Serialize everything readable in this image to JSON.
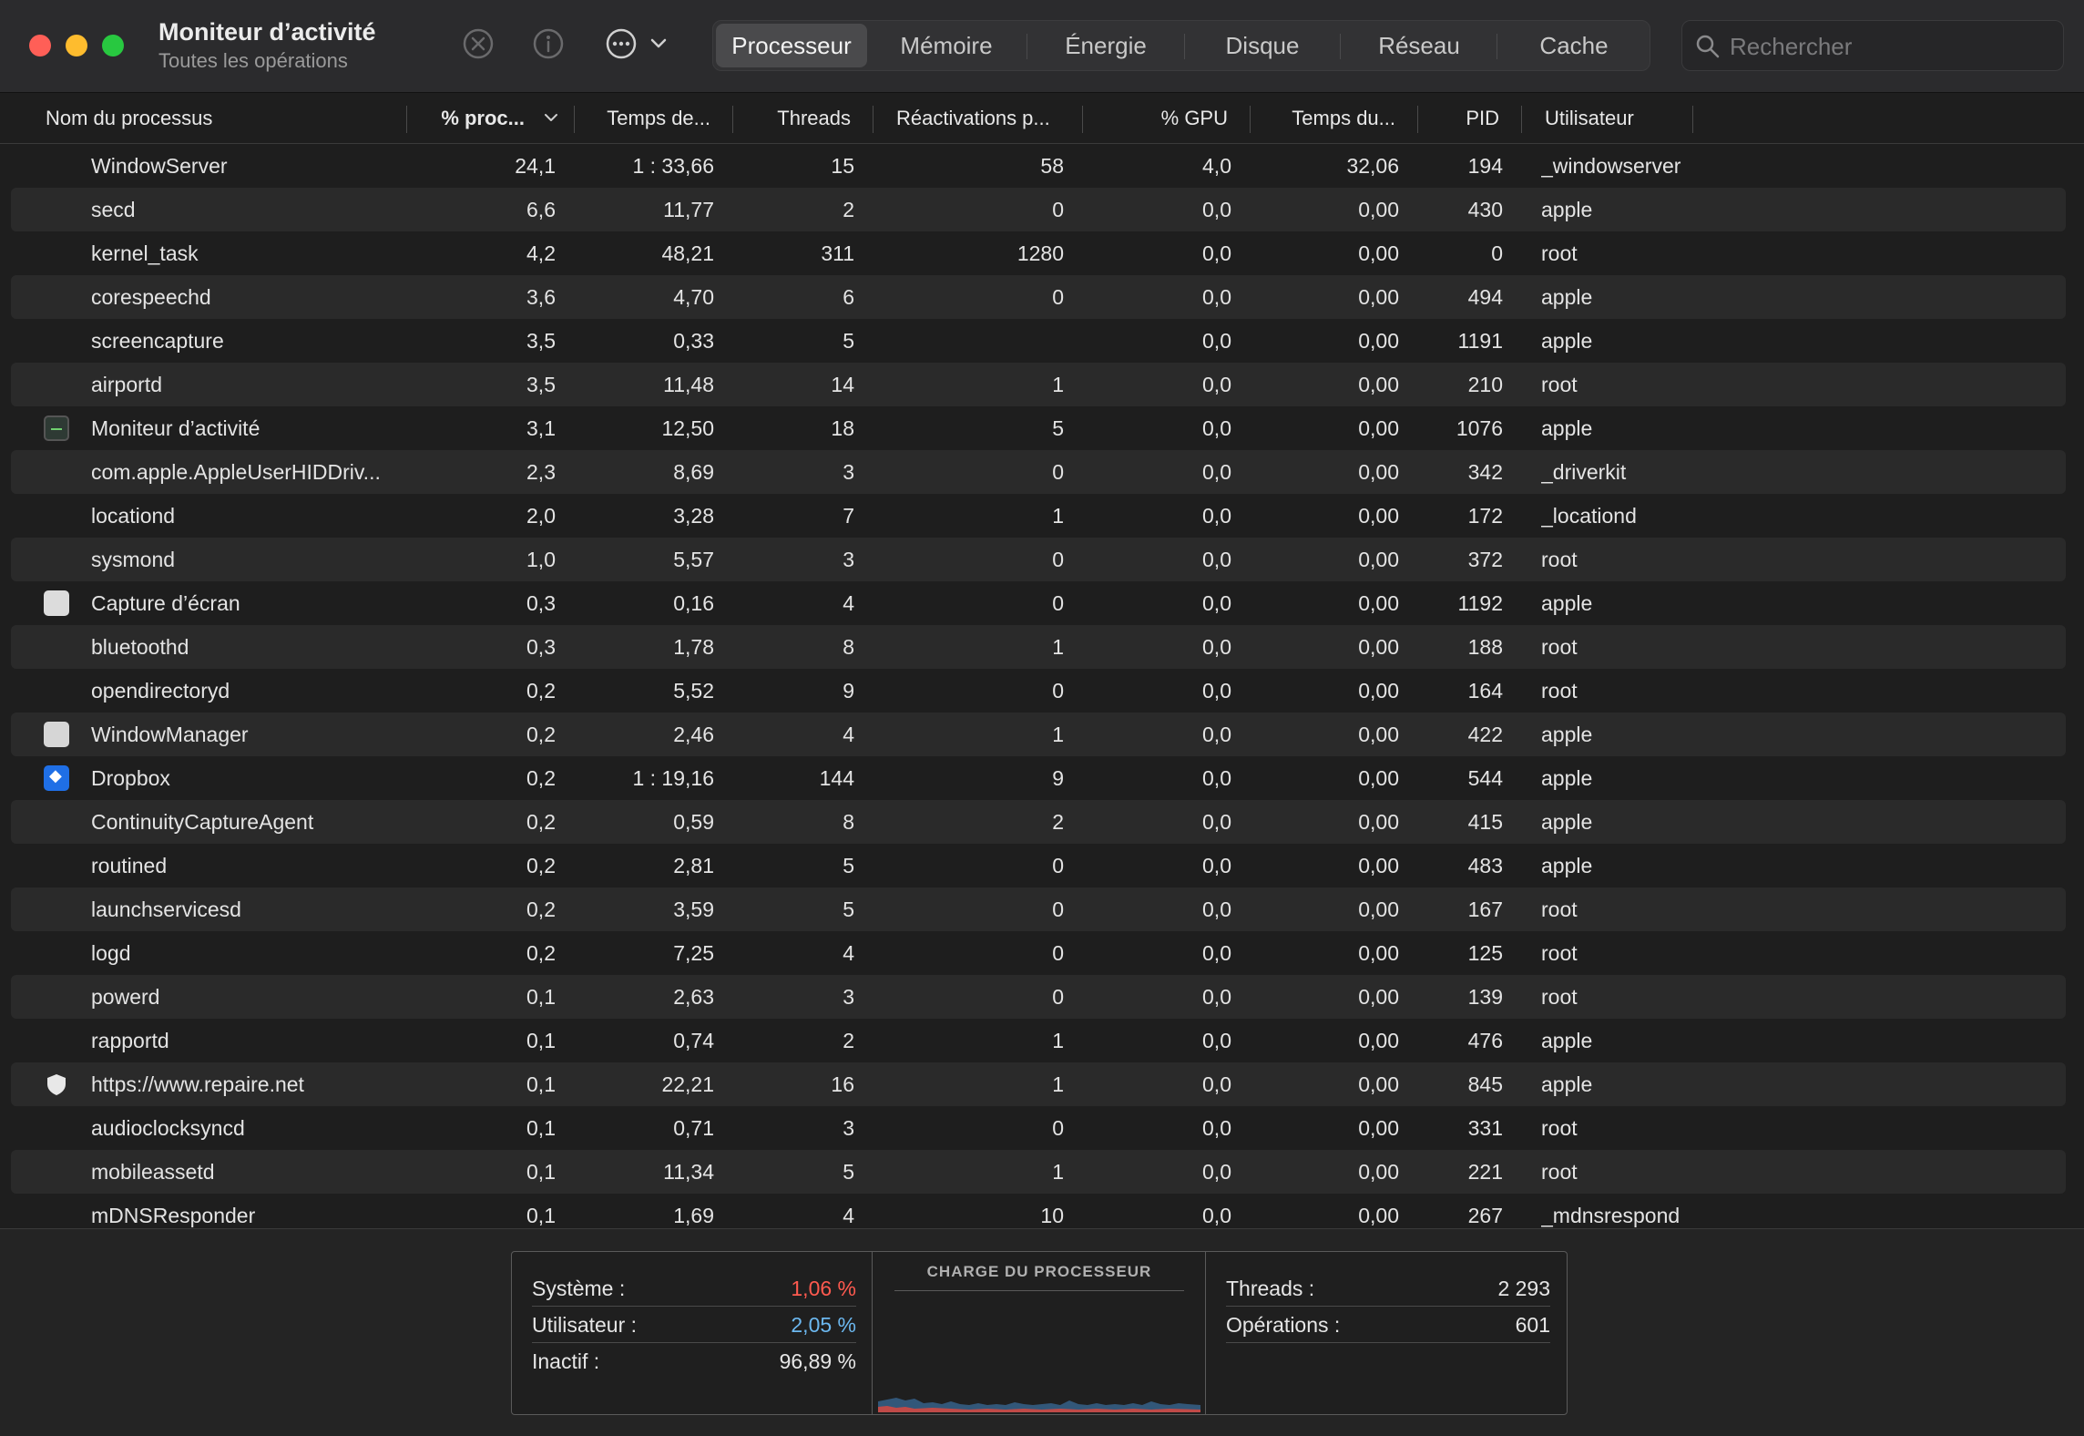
{
  "window": {
    "title": "Moniteur d’activité",
    "subtitle": "Toutes les opérations"
  },
  "toolbar": {
    "stop_icon": "xmark-circle-icon",
    "info_icon": "info-circle-icon",
    "more_icon": "ellipsis-circle-icon"
  },
  "tabs": [
    {
      "label": "Processeur",
      "active": true
    },
    {
      "label": "Mémoire"
    },
    {
      "label": "Énergie"
    },
    {
      "label": "Disque"
    },
    {
      "label": "Réseau"
    },
    {
      "label": "Cache"
    }
  ],
  "search": {
    "placeholder": "Rechercher"
  },
  "columns": [
    "Nom du processus",
    "% proc...",
    "Temps de...",
    "Threads",
    "Réactivations p...",
    "% GPU",
    "Temps du...",
    "PID",
    "Utilisateur"
  ],
  "rows": [
    {
      "name": "WindowServer",
      "icon": "",
      "cpu": "24,1",
      "time": "1 : 33,66",
      "threads": "15",
      "wakeups": "58",
      "gpu": "4,0",
      "gputime": "32,06",
      "pid": "194",
      "user": "_windowserver"
    },
    {
      "name": "secd",
      "icon": "",
      "cpu": "6,6",
      "time": "11,77",
      "threads": "2",
      "wakeups": "0",
      "gpu": "0,0",
      "gputime": "0,00",
      "pid": "430",
      "user": "apple"
    },
    {
      "name": "kernel_task",
      "icon": "",
      "cpu": "4,2",
      "time": "48,21",
      "threads": "311",
      "wakeups": "1280",
      "gpu": "0,0",
      "gputime": "0,00",
      "pid": "0",
      "user": "root"
    },
    {
      "name": "corespeechd",
      "icon": "",
      "cpu": "3,6",
      "time": "4,70",
      "threads": "6",
      "wakeups": "0",
      "gpu": "0,0",
      "gputime": "0,00",
      "pid": "494",
      "user": "apple"
    },
    {
      "name": "screencapture",
      "icon": "",
      "cpu": "3,5",
      "time": "0,33",
      "threads": "5",
      "wakeups": "",
      "gpu": "0,0",
      "gputime": "0,00",
      "pid": "1191",
      "user": "apple"
    },
    {
      "name": "airportd",
      "icon": "",
      "cpu": "3,5",
      "time": "11,48",
      "threads": "14",
      "wakeups": "1",
      "gpu": "0,0",
      "gputime": "0,00",
      "pid": "210",
      "user": "root"
    },
    {
      "name": "Moniteur d’activité",
      "icon": "monitor",
      "cpu": "3,1",
      "time": "12,50",
      "threads": "18",
      "wakeups": "5",
      "gpu": "0,0",
      "gputime": "0,00",
      "pid": "1076",
      "user": "apple"
    },
    {
      "name": "com.apple.AppleUserHIDDriv...",
      "icon": "",
      "cpu": "2,3",
      "time": "8,69",
      "threads": "3",
      "wakeups": "0",
      "gpu": "0,0",
      "gputime": "0,00",
      "pid": "342",
      "user": "_driverkit"
    },
    {
      "name": "locationd",
      "icon": "",
      "cpu": "2,0",
      "time": "3,28",
      "threads": "7",
      "wakeups": "1",
      "gpu": "0,0",
      "gputime": "0,00",
      "pid": "172",
      "user": "_locationd"
    },
    {
      "name": "sysmond",
      "icon": "",
      "cpu": "1,0",
      "time": "5,57",
      "threads": "3",
      "wakeups": "0",
      "gpu": "0,0",
      "gputime": "0,00",
      "pid": "372",
      "user": "root"
    },
    {
      "name": "Capture d’écran",
      "icon": "screenshot",
      "cpu": "0,3",
      "time": "0,16",
      "threads": "4",
      "wakeups": "0",
      "gpu": "0,0",
      "gputime": "0,00",
      "pid": "1192",
      "user": "apple"
    },
    {
      "name": "bluetoothd",
      "icon": "",
      "cpu": "0,3",
      "time": "1,78",
      "threads": "8",
      "wakeups": "1",
      "gpu": "0,0",
      "gputime": "0,00",
      "pid": "188",
      "user": "root"
    },
    {
      "name": "opendirectoryd",
      "icon": "",
      "cpu": "0,2",
      "time": "5,52",
      "threads": "9",
      "wakeups": "0",
      "gpu": "0,0",
      "gputime": "0,00",
      "pid": "164",
      "user": "root"
    },
    {
      "name": "WindowManager",
      "icon": "winmgr",
      "cpu": "0,2",
      "time": "2,46",
      "threads": "4",
      "wakeups": "1",
      "gpu": "0,0",
      "gputime": "0,00",
      "pid": "422",
      "user": "apple"
    },
    {
      "name": "Dropbox",
      "icon": "dropbox",
      "cpu": "0,2",
      "time": "1 : 19,16",
      "threads": "144",
      "wakeups": "9",
      "gpu": "0,0",
      "gputime": "0,00",
      "pid": "544",
      "user": "apple"
    },
    {
      "name": "ContinuityCaptureAgent",
      "icon": "",
      "cpu": "0,2",
      "time": "0,59",
      "threads": "8",
      "wakeups": "2",
      "gpu": "0,0",
      "gputime": "0,00",
      "pid": "415",
      "user": "apple"
    },
    {
      "name": "routined",
      "icon": "",
      "cpu": "0,2",
      "time": "2,81",
      "threads": "5",
      "wakeups": "0",
      "gpu": "0,0",
      "gputime": "0,00",
      "pid": "483",
      "user": "apple"
    },
    {
      "name": "launchservicesd",
      "icon": "",
      "cpu": "0,2",
      "time": "3,59",
      "threads": "5",
      "wakeups": "0",
      "gpu": "0,0",
      "gputime": "0,00",
      "pid": "167",
      "user": "root"
    },
    {
      "name": "logd",
      "icon": "",
      "cpu": "0,2",
      "time": "7,25",
      "threads": "4",
      "wakeups": "0",
      "gpu": "0,0",
      "gputime": "0,00",
      "pid": "125",
      "user": "root"
    },
    {
      "name": "powerd",
      "icon": "",
      "cpu": "0,1",
      "time": "2,63",
      "threads": "3",
      "wakeups": "0",
      "gpu": "0,0",
      "gputime": "0,00",
      "pid": "139",
      "user": "root"
    },
    {
      "name": "rapportd",
      "icon": "",
      "cpu": "0,1",
      "time": "0,74",
      "threads": "2",
      "wakeups": "1",
      "gpu": "0,0",
      "gputime": "0,00",
      "pid": "476",
      "user": "apple"
    },
    {
      "name": "https://www.repaire.net",
      "icon": "shield",
      "cpu": "0,1",
      "time": "22,21",
      "threads": "16",
      "wakeups": "1",
      "gpu": "0,0",
      "gputime": "0,00",
      "pid": "845",
      "user": "apple"
    },
    {
      "name": "audioclocksyncd",
      "icon": "",
      "cpu": "0,1",
      "time": "0,71",
      "threads": "3",
      "wakeups": "0",
      "gpu": "0,0",
      "gputime": "0,00",
      "pid": "331",
      "user": "root"
    },
    {
      "name": "mobileassetd",
      "icon": "",
      "cpu": "0,1",
      "time": "11,34",
      "threads": "5",
      "wakeups": "1",
      "gpu": "0,0",
      "gputime": "0,00",
      "pid": "221",
      "user": "root"
    },
    {
      "name": "mDNSResponder",
      "icon": "",
      "cpu": "0,1",
      "time": "1,69",
      "threads": "4",
      "wakeups": "10",
      "gpu": "0,0",
      "gputime": "0,00",
      "pid": "267",
      "user": "_mdnsrespond"
    }
  ],
  "summary": {
    "systeme_label": "Système :",
    "systeme_value": "1,06 %",
    "systeme_color": "#ff5a4f",
    "utilisateur_label": "Utilisateur :",
    "utilisateur_value": "2,05 %",
    "utilisateur_color": "#6cb8f0",
    "inactif_label": "Inactif :",
    "inactif_value": "96,89 %",
    "graph_title": "CHARGE DU PROCESSEUR",
    "threads_label": "Threads :",
    "threads_value": "2 293",
    "operations_label": "Opérations :",
    "operations_value": "601"
  },
  "colors": {
    "accent_red": "#ff5a4f",
    "accent_blue": "#6cb8f0"
  }
}
